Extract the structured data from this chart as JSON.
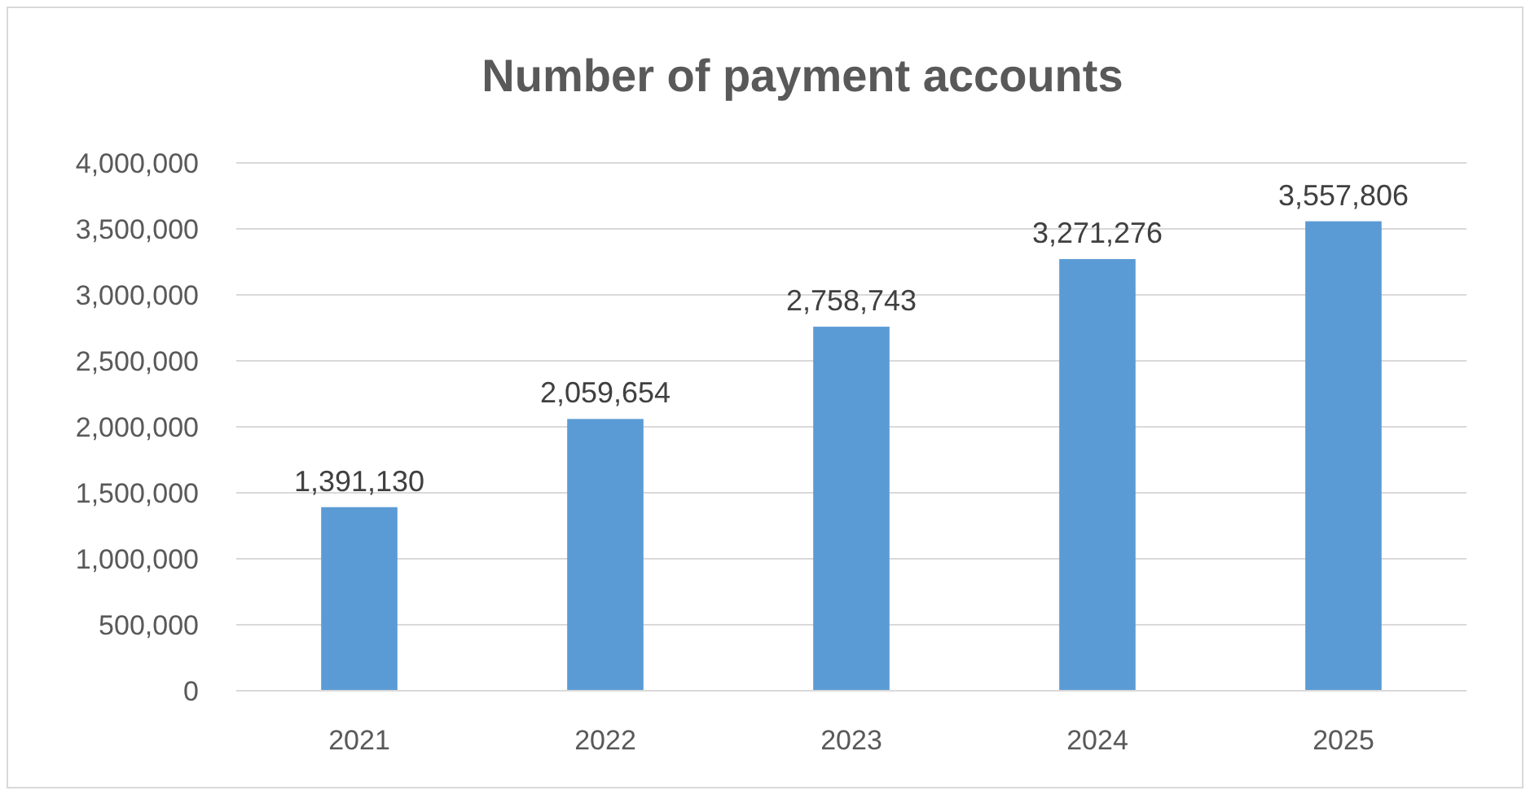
{
  "chart_data": {
    "type": "bar",
    "title": "Number of payment accounts",
    "categories": [
      "2021",
      "2022",
      "2023",
      "2024",
      "2025"
    ],
    "values": [
      1391130,
      2059654,
      2758743,
      3271276,
      3557806
    ],
    "value_labels": [
      "1,391,130",
      "2,059,654",
      "2,758,743",
      "3,271,276",
      "3,557,806"
    ],
    "color": "#5b9bd5",
    "ylim": [
      0,
      4000000
    ],
    "yticks": [
      0,
      {
        "value": 500000,
        "label": "500,000"
      },
      {
        "value": 1000000,
        "label": "1,000,000"
      },
      {
        "value": 1500000,
        "label": "1,500,000"
      },
      {
        "value": 2000000,
        "label": "2,000,000"
      },
      {
        "value": 2500000,
        "label": "2,500,000"
      },
      {
        "value": 3000000,
        "label": "3,000,000"
      },
      {
        "value": 3500000,
        "label": "3,500,000"
      },
      {
        "value": 4000000,
        "label": "4,000,000"
      }
    ],
    "grid": "y"
  }
}
